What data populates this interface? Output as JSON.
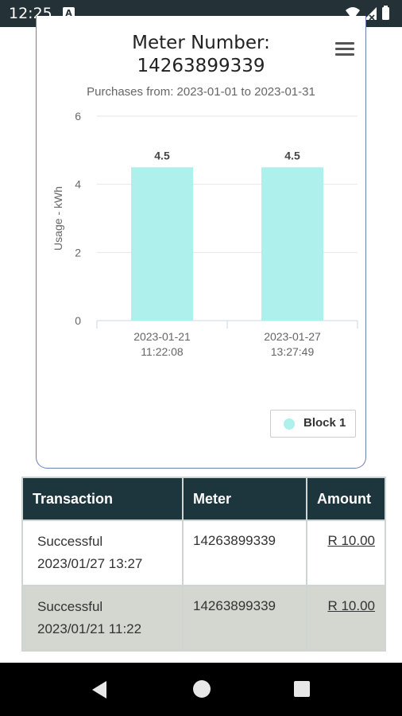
{
  "status_bar": {
    "time": "12:25",
    "notification_letter": "A"
  },
  "chart_data": {
    "type": "bar",
    "title": "Meter Number:",
    "title_line2": "14263899339",
    "subtitle": "Purchases from: 2023-01-01 to 2023-01-31",
    "ylabel": "Usage - kWh",
    "ylim": [
      0,
      6
    ],
    "y_ticks": [
      "0",
      "2",
      "4",
      "6"
    ],
    "categories": [
      {
        "line1": "2023-01-21",
        "line2": "11:22:08"
      },
      {
        "line1": "2023-01-27",
        "line2": "13:27:49"
      }
    ],
    "series": [
      {
        "name": "Block 1",
        "values": [
          4.5,
          4.5
        ],
        "labels": [
          "4.5",
          "4.5"
        ],
        "color": "#aef0ec"
      }
    ],
    "legend_position": "bottom-right",
    "grid": true
  },
  "table": {
    "headers": [
      "Transaction",
      "Meter",
      "Amount"
    ],
    "rows": [
      {
        "status": "Successful",
        "datetime": "2023/01/27 13:27",
        "meter": "14263899339",
        "amount": "R 10.00"
      },
      {
        "status": "Successful",
        "datetime": "2023/01/21 11:22",
        "meter": "14263899339",
        "amount": "R 10.00"
      }
    ]
  },
  "colors": {
    "header_bg": "#1d353d",
    "alt_row": "#d4d7d0",
    "card_border": "#6d7fb5",
    "bar": "#aef0ec"
  }
}
